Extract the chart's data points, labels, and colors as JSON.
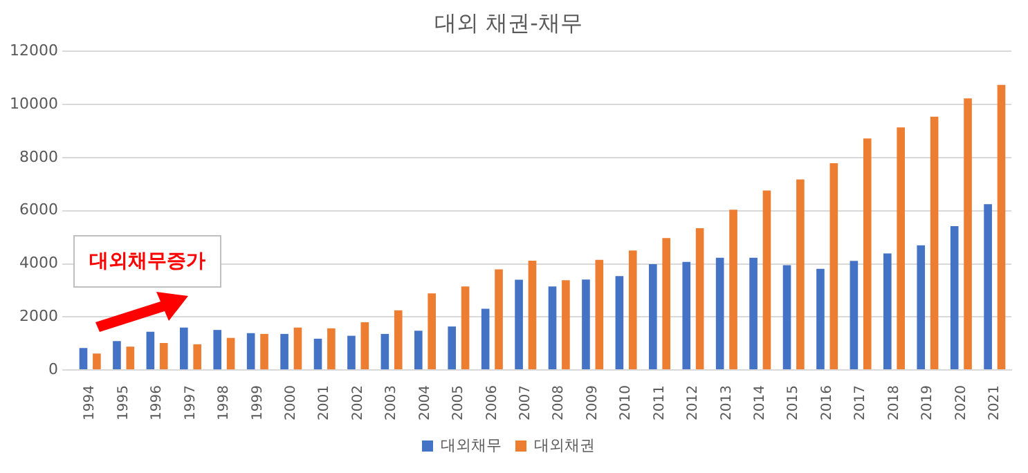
{
  "chart_data": {
    "type": "bar",
    "title": "대외 채권-채무",
    "categories": [
      "1994",
      "1995",
      "1996",
      "1997",
      "1998",
      "1999",
      "2000",
      "2001",
      "2002",
      "2003",
      "2004",
      "2005",
      "2006",
      "2007",
      "2008",
      "2009",
      "2010",
      "2011",
      "2012",
      "2013",
      "2014",
      "2015",
      "2016",
      "2017",
      "2018",
      "2019",
      "2020",
      "2021"
    ],
    "series": [
      {
        "name": "대외채무",
        "color": "#4472c4",
        "values": [
          830,
          1090,
          1440,
          1600,
          1510,
          1390,
          1360,
          1180,
          1290,
          1360,
          1480,
          1640,
          2310,
          3400,
          3150,
          3410,
          3540,
          3990,
          4070,
          4230,
          4230,
          3950,
          3810,
          4110,
          4390,
          4700,
          5420,
          6250
        ]
      },
      {
        "name": "대외채권",
        "color": "#ed7d31",
        "values": [
          620,
          880,
          1020,
          970,
          1210,
          1360,
          1600,
          1570,
          1800,
          2250,
          2890,
          3150,
          3790,
          4120,
          3380,
          4150,
          4500,
          4970,
          5340,
          6040,
          6760,
          7180,
          7790,
          8720,
          9140,
          9540,
          10230,
          10740
        ]
      }
    ],
    "ylim": [
      0,
      12000
    ],
    "yticks": [
      0,
      2000,
      4000,
      6000,
      8000,
      10000,
      12000
    ],
    "grid": "y",
    "legend": "bottom",
    "annotations": [
      "대외채무증가"
    ]
  }
}
